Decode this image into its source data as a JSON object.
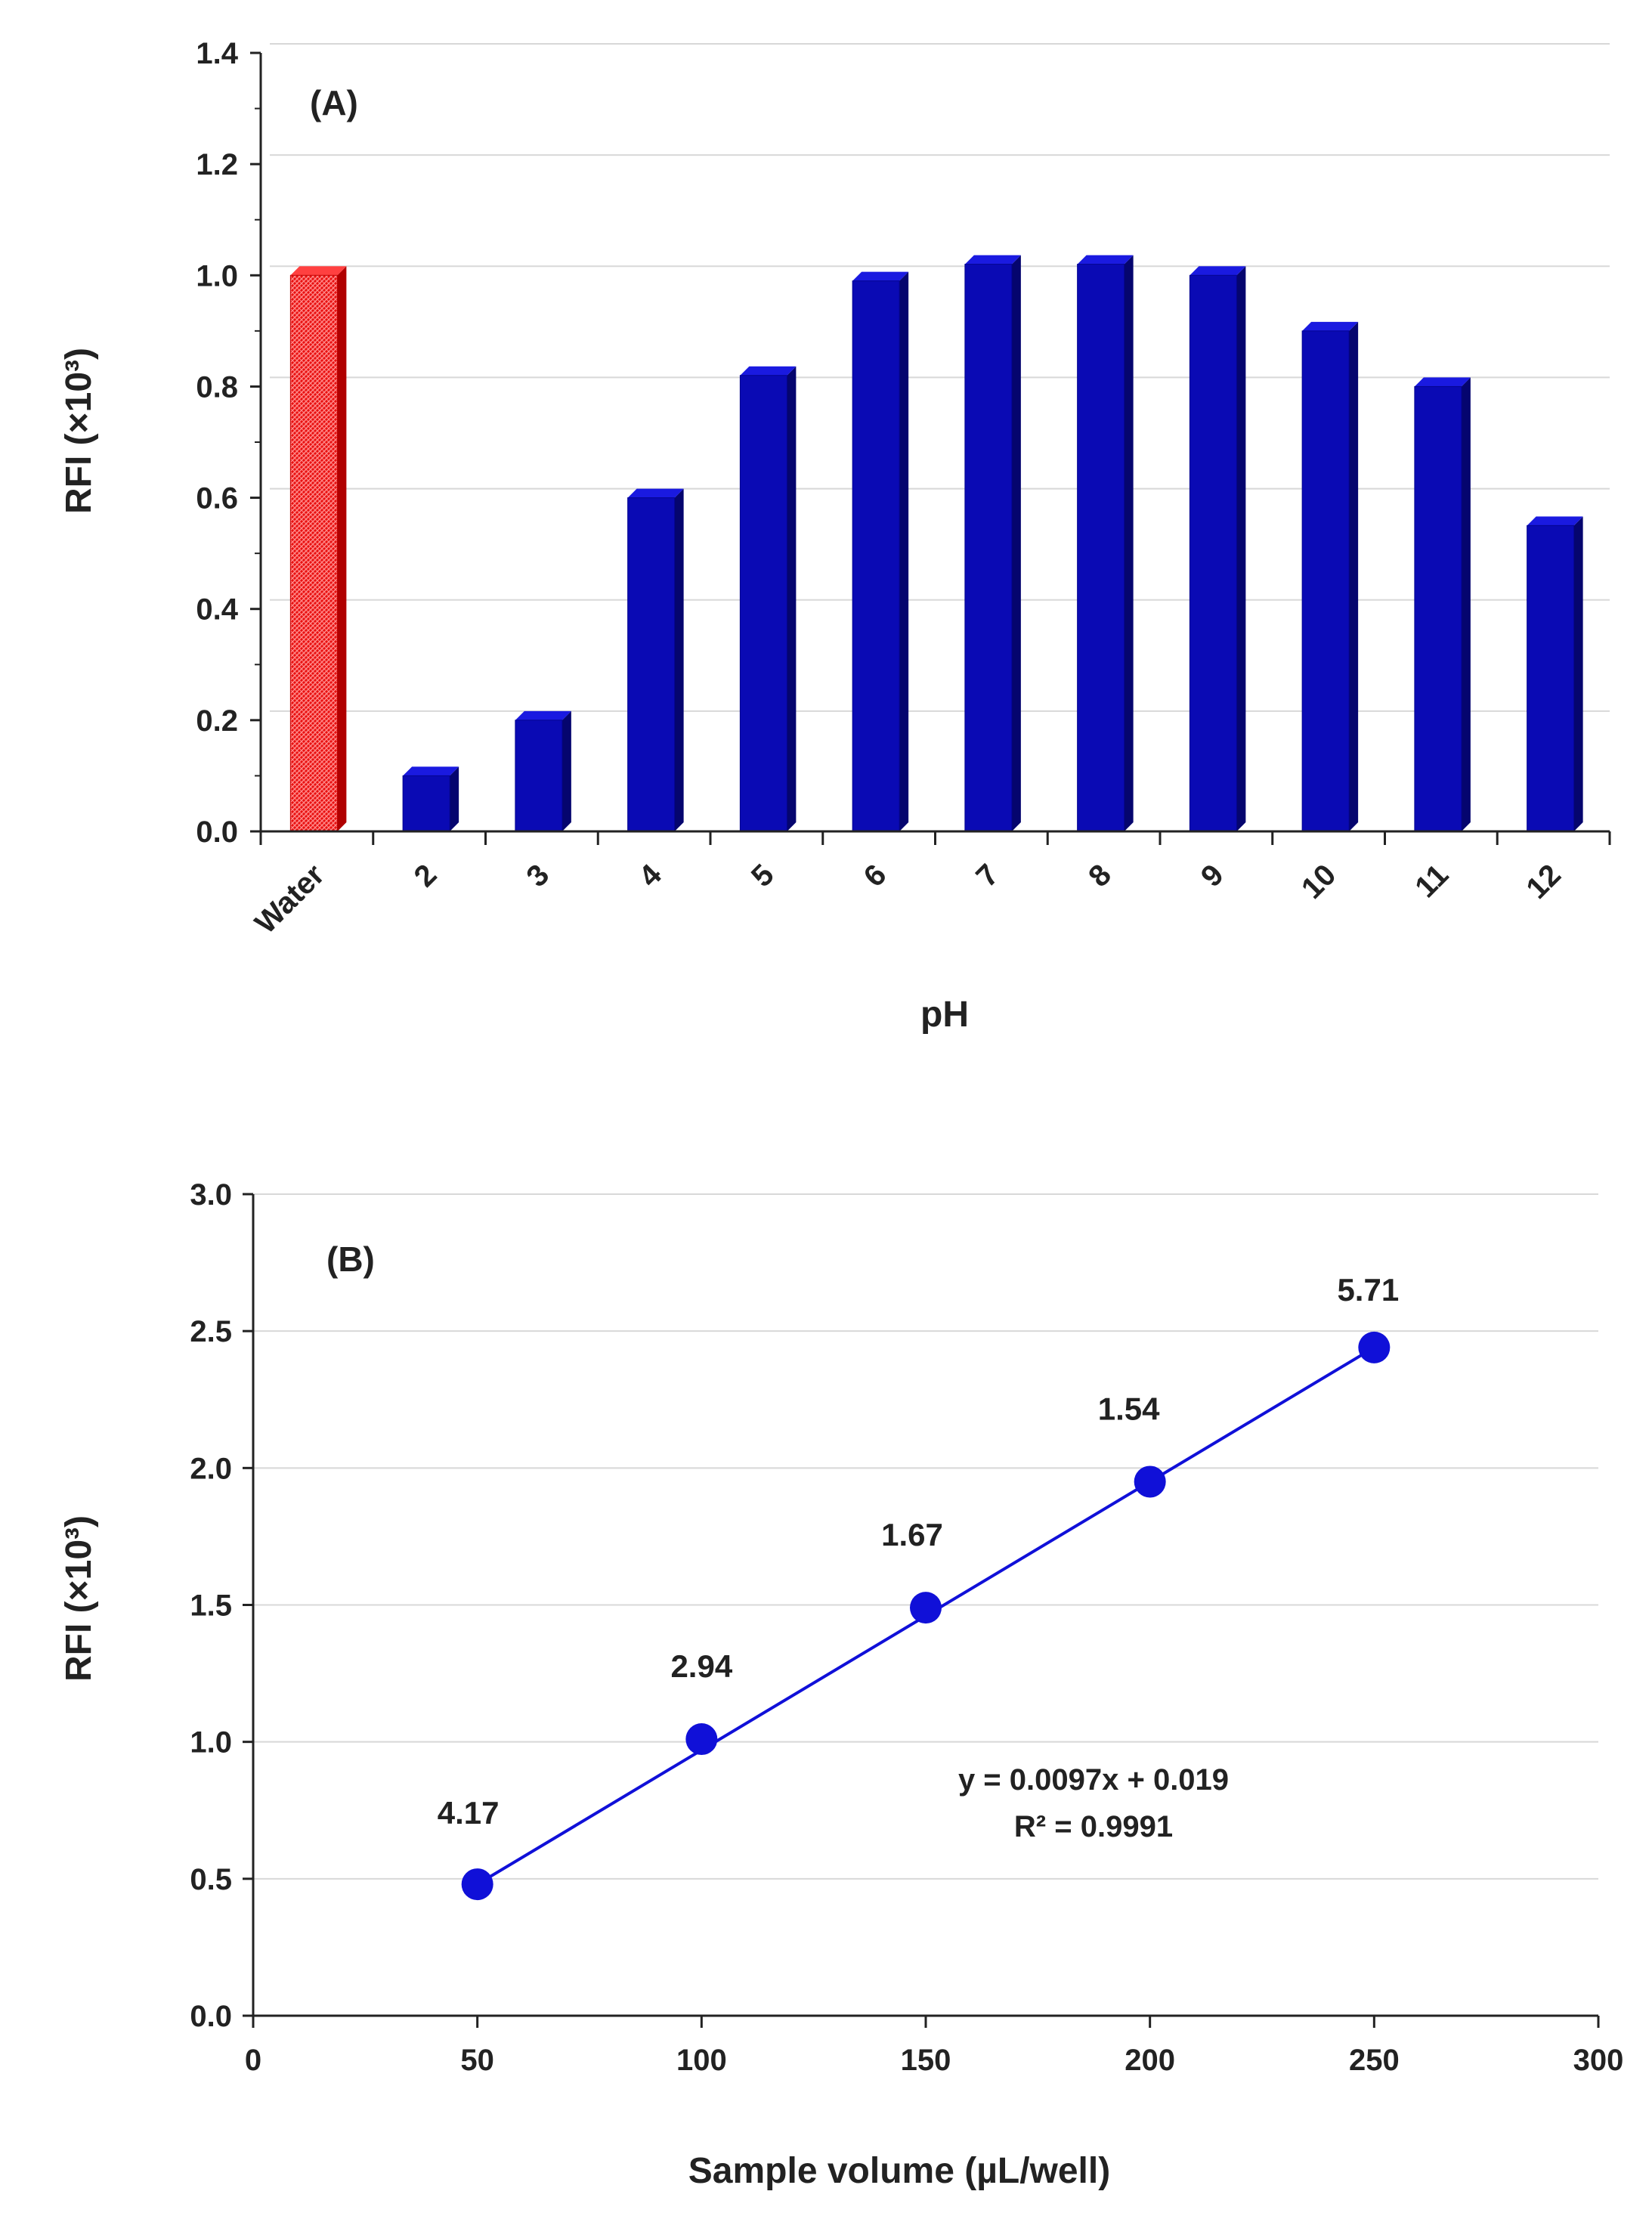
{
  "chart_data": [
    {
      "type": "bar",
      "panel_label": "(A)",
      "title": "",
      "xlabel": "pH",
      "ylabel": "RFI (×10³)",
      "categories": [
        "Water",
        "2",
        "3",
        "4",
        "5",
        "6",
        "7",
        "8",
        "9",
        "10",
        "11",
        "12"
      ],
      "values": [
        1.0,
        0.1,
        0.2,
        0.6,
        0.82,
        0.99,
        1.02,
        1.02,
        1.0,
        0.9,
        0.8,
        0.55
      ],
      "ylim": [
        0,
        1.4
      ],
      "yticks": [
        "0.0",
        "0.2",
        "0.4",
        "0.6",
        "0.8",
        "1.0",
        "1.2",
        "1.4"
      ],
      "ytick_values": [
        0,
        0.2,
        0.4,
        0.6,
        0.8,
        1.0,
        1.2,
        1.4
      ],
      "grid": true,
      "colors": {
        "control": "#e81010",
        "control_hatch": "#ff7070",
        "bars": "#0a0ab4",
        "bar_side": "#05056e",
        "bar_top": "#1a1ae0",
        "grid": "#d8d8d8",
        "axis": "#222222"
      }
    },
    {
      "type": "scatter",
      "panel_label": "(B)",
      "title": "",
      "xlabel": "Sample volume (µL/well)",
      "ylabel": "RFI (×10³)",
      "x": [
        50,
        100,
        150,
        200,
        250
      ],
      "y": [
        0.48,
        1.01,
        1.49,
        1.95,
        2.44
      ],
      "point_labels": [
        "4.17",
        "2.94",
        "1.67",
        "1.54",
        "5.71"
      ],
      "xlim": [
        0,
        300
      ],
      "ylim": [
        0,
        3.0
      ],
      "xticks": [
        "0",
        "50",
        "100",
        "150",
        "200",
        "250",
        "300"
      ],
      "xtick_values": [
        0,
        50,
        100,
        150,
        200,
        250,
        300
      ],
      "yticks": [
        "0.0",
        "0.5",
        "1.0",
        "1.5",
        "2.0",
        "2.5",
        "3.0"
      ],
      "ytick_values": [
        0,
        0.5,
        1.0,
        1.5,
        2.0,
        2.5,
        3.0
      ],
      "trendline": {
        "slope": 0.0097,
        "intercept": 0.019,
        "x_range": [
          50,
          250
        ]
      },
      "equation": "y = 0.0097x + 0.019",
      "r_squared": "R² = 0.9991",
      "grid": true,
      "colors": {
        "series": "#1010d8",
        "grid": "#d8d8d8",
        "axis": "#222222"
      }
    }
  ]
}
